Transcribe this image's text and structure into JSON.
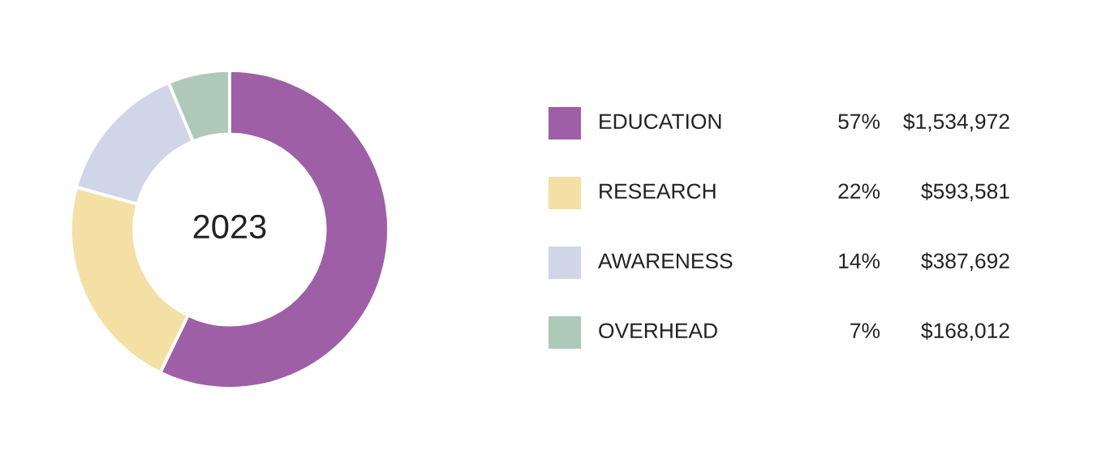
{
  "chart_data": {
    "type": "donut",
    "title": "2023",
    "categories": [
      "EDUCATION",
      "RESEARCH",
      "AWARENESS",
      "OVERHEAD"
    ],
    "values": [
      1534972,
      593581,
      387692,
      168012
    ],
    "value_labels": [
      "$1,534,972",
      "$593,581",
      "$387,692",
      "$168,012"
    ],
    "annotations": [
      "57%",
      "22%",
      "14%",
      "7%"
    ],
    "colors": [
      "#9e5fa6",
      "#f4dfa5",
      "#d0d5e8",
      "#aec8b9"
    ],
    "legend": "right"
  }
}
